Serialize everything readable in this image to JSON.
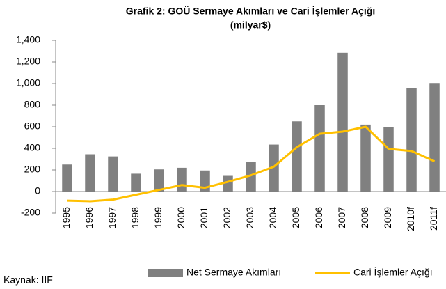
{
  "chart_data": {
    "type": "bar_line",
    "title": "Grafik 2: GOÜ Sermaye Akımları ve Cari İşlemler Açığı",
    "subtitle": "(milyar$)",
    "note": "Kaynak: IIF",
    "categories": [
      "1995",
      "1996",
      "1997",
      "1998",
      "1999",
      "2000",
      "2001",
      "2002",
      "2003",
      "2004",
      "2005",
      "2006",
      "2007",
      "2008",
      "2009",
      "2010f",
      "2011f"
    ],
    "series": [
      {
        "name": "Net Sermaye Akımları",
        "type": "bar",
        "color": "#808080",
        "values": [
          250,
          345,
          325,
          165,
          205,
          220,
          195,
          145,
          275,
          435,
          650,
          800,
          1285,
          620,
          600,
          960,
          1005
        ]
      },
      {
        "name": "Cari İşlemler Açığı",
        "type": "line",
        "color": "#ffc000",
        "values": [
          -85,
          -90,
          -75,
          -30,
          15,
          60,
          35,
          90,
          150,
          230,
          410,
          535,
          555,
          600,
          395,
          375,
          280
        ]
      }
    ],
    "ylim": [
      -200,
      1400
    ],
    "yticks": [
      -200,
      0,
      200,
      400,
      600,
      800,
      {
        "value": 1000,
        "label": "1,000"
      },
      {
        "value": 1200,
        "label": "1,200"
      },
      {
        "value": 1400,
        "label": "1,400"
      }
    ],
    "legend": "bottom"
  }
}
